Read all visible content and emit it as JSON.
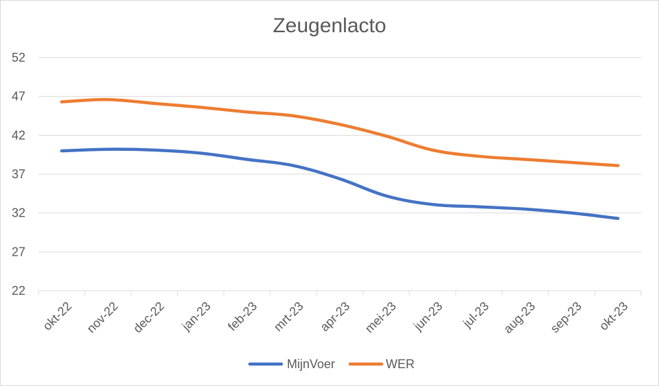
{
  "chart_data": {
    "type": "line",
    "title": "Zeugenlacto",
    "categories": [
      "okt-22",
      "nov-22",
      "dec-22",
      "jan-23",
      "feb-23",
      "mrt-23",
      "apr-23",
      "mei-23",
      "jun-23",
      "jul-23",
      "aug-23",
      "sep-23",
      "okt-23"
    ],
    "ylim": [
      22,
      52
    ],
    "yticks": [
      22,
      27,
      32,
      37,
      42,
      47,
      52
    ],
    "grid": true,
    "legend_position": "bottom",
    "series": [
      {
        "name": "MijnVoer",
        "color": "#4472c4",
        "values": [
          40.0,
          40.2,
          40.1,
          39.7,
          38.9,
          38.1,
          36.4,
          34.2,
          33.1,
          32.8,
          32.5,
          32.0,
          31.3
        ]
      },
      {
        "name": "WER",
        "color": "#ed7d31",
        "values": [
          46.3,
          46.6,
          46.1,
          45.6,
          45.0,
          44.5,
          43.4,
          41.9,
          40.1,
          39.3,
          38.9,
          38.5,
          38.1
        ]
      }
    ]
  }
}
